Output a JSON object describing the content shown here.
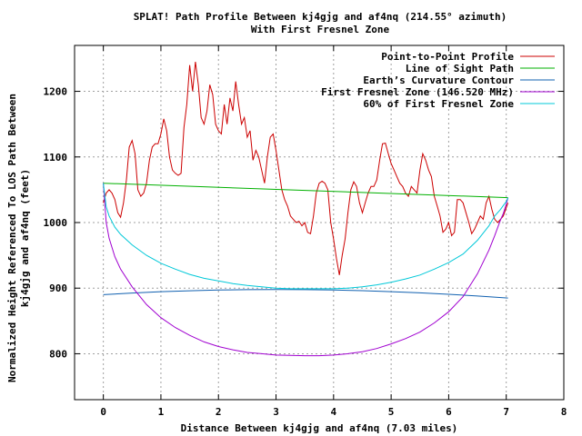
{
  "chart_data": {
    "type": "line",
    "title": "SPLAT! Path Profile Between kj4gjg and af4nq (214.55° azimuth)",
    "subtitle": "With First Fresnel Zone",
    "xlabel": "Distance Between kj4gjg and af4nq (7.03 miles)",
    "ylabel_line1": "Normalized Height Referenced To LOS Path Between",
    "ylabel_line2": "kj4gjg and af4nq (feet)",
    "xlim": [
      -0.5,
      8
    ],
    "ylim": [
      730,
      1270
    ],
    "xticks": [
      0,
      1,
      2,
      3,
      4,
      5,
      6,
      7,
      8
    ],
    "yticks": [
      800,
      900,
      1000,
      1100,
      1200
    ],
    "grid": true,
    "legend_position": "top-right",
    "series": [
      {
        "name": "Point-to-Point Profile",
        "color": "#cc0000",
        "x": [
          0,
          0.05,
          0.1,
          0.15,
          0.2,
          0.25,
          0.3,
          0.35,
          0.4,
          0.45,
          0.5,
          0.55,
          0.6,
          0.65,
          0.7,
          0.75,
          0.8,
          0.85,
          0.9,
          0.95,
          1.0,
          1.05,
          1.1,
          1.15,
          1.2,
          1.25,
          1.3,
          1.35,
          1.4,
          1.45,
          1.5,
          1.55,
          1.6,
          1.65,
          1.7,
          1.75,
          1.8,
          1.85,
          1.9,
          1.95,
          2.0,
          2.05,
          2.1,
          2.15,
          2.2,
          2.25,
          2.3,
          2.35,
          2.4,
          2.45,
          2.5,
          2.55,
          2.6,
          2.65,
          2.7,
          2.75,
          2.8,
          2.85,
          2.9,
          2.95,
          3.0,
          3.05,
          3.1,
          3.15,
          3.2,
          3.25,
          3.3,
          3.35,
          3.4,
          3.45,
          3.5,
          3.55,
          3.6,
          3.65,
          3.7,
          3.75,
          3.8,
          3.85,
          3.9,
          3.95,
          4.0,
          4.05,
          4.1,
          4.15,
          4.2,
          4.25,
          4.3,
          4.35,
          4.4,
          4.45,
          4.5,
          4.55,
          4.6,
          4.65,
          4.7,
          4.75,
          4.8,
          4.85,
          4.9,
          4.95,
          5.0,
          5.05,
          5.1,
          5.15,
          5.2,
          5.25,
          5.3,
          5.35,
          5.4,
          5.45,
          5.5,
          5.55,
          5.6,
          5.65,
          5.7,
          5.75,
          5.8,
          5.85,
          5.9,
          5.95,
          6.0,
          6.05,
          6.1,
          6.15,
          6.2,
          6.25,
          6.3,
          6.35,
          6.4,
          6.45,
          6.5,
          6.55,
          6.6,
          6.65,
          6.7,
          6.75,
          6.8,
          6.85,
          6.9,
          6.95,
          7.03
        ],
        "y": [
          1030,
          1045,
          1050,
          1045,
          1035,
          1015,
          1008,
          1030,
          1065,
          1115,
          1125,
          1105,
          1050,
          1040,
          1045,
          1060,
          1095,
          1115,
          1120,
          1120,
          1135,
          1158,
          1140,
          1100,
          1080,
          1075,
          1072,
          1075,
          1145,
          1180,
          1240,
          1200,
          1245,
          1210,
          1160,
          1150,
          1170,
          1210,
          1195,
          1150,
          1140,
          1135,
          1180,
          1150,
          1190,
          1170,
          1215,
          1180,
          1150,
          1160,
          1130,
          1140,
          1095,
          1110,
          1100,
          1080,
          1060,
          1100,
          1130,
          1135,
          1110,
          1080,
          1050,
          1035,
          1025,
          1010,
          1005,
          1000,
          1002,
          995,
          1000,
          985,
          983,
          1010,
          1045,
          1060,
          1063,
          1060,
          1050,
          1000,
          975,
          945,
          920,
          950,
          975,
          1015,
          1050,
          1062,
          1055,
          1030,
          1015,
          1030,
          1045,
          1055,
          1055,
          1065,
          1095,
          1120,
          1121,
          1105,
          1090,
          1080,
          1070,
          1060,
          1055,
          1045,
          1040,
          1055,
          1050,
          1045,
          1080,
          1105,
          1095,
          1080,
          1070,
          1040,
          1025,
          1010,
          985,
          990,
          1000,
          980,
          985,
          1035,
          1035,
          1030,
          1015,
          1000,
          983,
          990,
          1000,
          1010,
          1005,
          1030,
          1040,
          1020,
          1005,
          1000,
          1005,
          1010,
          1030
        ]
      },
      {
        "name": "Line of Sight Path",
        "color": "#00b000",
        "x": [
          0,
          7.03
        ],
        "y": [
          1060,
          1038
        ]
      },
      {
        "name": "Earth’s Curvature Contour",
        "color": "#1060b0",
        "x": [
          0,
          0.5,
          1,
          1.5,
          2,
          2.5,
          3,
          3.5,
          4,
          4.5,
          5,
          5.5,
          6,
          6.5,
          7.03
        ],
        "y": [
          890,
          892.6,
          894.6,
          896.0,
          897.1,
          897.7,
          897.9,
          897.7,
          897.1,
          896.1,
          894.6,
          892.8,
          890.6,
          888,
          885
        ]
      },
      {
        "name": "First Fresnel Zone (146.520 MHz)",
        "color": "#a000d0",
        "x": [
          0,
          0.05,
          0.1,
          0.2,
          0.3,
          0.5,
          0.75,
          1.0,
          1.25,
          1.5,
          1.75,
          2.0,
          2.25,
          2.5,
          2.75,
          3.0,
          3.25,
          3.5,
          3.75,
          4.0,
          4.25,
          4.5,
          4.75,
          5.0,
          5.25,
          5.5,
          5.75,
          6.0,
          6.25,
          6.5,
          6.7,
          6.8,
          6.9,
          6.95,
          7.0,
          7.03
        ],
        "y": [
          1060,
          1000,
          976,
          948,
          929,
          902,
          875,
          855,
          840,
          828,
          818,
          811,
          806,
          802,
          800,
          798,
          797.5,
          797,
          797,
          798,
          800,
          803,
          808,
          815,
          823,
          833,
          847,
          864,
          887,
          922,
          958,
          980,
          1004,
          1014,
          1028,
          1038
        ]
      },
      {
        "name": "60% of First Fresnel Zone",
        "color": "#00c8d8",
        "x": [
          0,
          0.05,
          0.1,
          0.2,
          0.3,
          0.5,
          0.75,
          1.0,
          1.25,
          1.5,
          1.75,
          2.0,
          2.25,
          2.5,
          2.75,
          3.0,
          3.25,
          3.5,
          3.75,
          4.0,
          4.25,
          4.5,
          4.75,
          5.0,
          5.25,
          5.5,
          5.75,
          6.0,
          6.25,
          6.5,
          6.7,
          6.8,
          6.9,
          6.95,
          7.0,
          7.03
        ],
        "y": [
          1060,
          1024,
          1010,
          993,
          982,
          966,
          950,
          938,
          929,
          921,
          915,
          911,
          907,
          904,
          902,
          900,
          899,
          899,
          899,
          899,
          900,
          902,
          905,
          909,
          914,
          920,
          929,
          939,
          952,
          973,
          995,
          1010,
          1020,
          1026,
          1032,
          1038
        ]
      }
    ]
  }
}
